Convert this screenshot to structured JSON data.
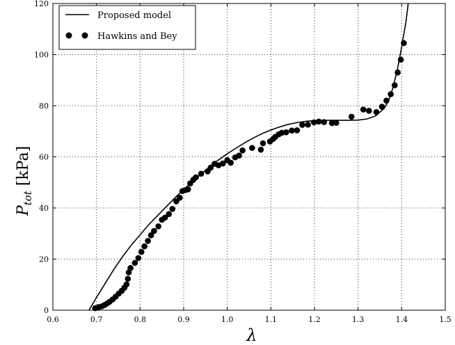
{
  "chart_data": {
    "type": "line",
    "xlabel": "λ",
    "ylabel_main": "P",
    "ylabel_sub": "tot",
    "ylabel_unit": " [kPa]",
    "xlim": [
      0.6,
      1.5
    ],
    "ylim": [
      0,
      120
    ],
    "xticks": [
      "0.6",
      "0.7",
      "0.8",
      "0.9",
      "1.0",
      "1.1",
      "1.2",
      "1.3",
      "1.4",
      "1.5"
    ],
    "yticks": [
      "0",
      "20",
      "40",
      "60",
      "80",
      "100",
      "120"
    ],
    "grid": true,
    "legend_position": "top-left",
    "series": [
      {
        "name": "Proposed model",
        "kind": "line",
        "color": "#000000",
        "points": [
          [
            0.683,
            0
          ],
          [
            0.7,
            5
          ],
          [
            0.72,
            10.5
          ],
          [
            0.74,
            16
          ],
          [
            0.76,
            21
          ],
          [
            0.78,
            25.5
          ],
          [
            0.8,
            29.5
          ],
          [
            0.82,
            33.5
          ],
          [
            0.84,
            37
          ],
          [
            0.86,
            40.5
          ],
          [
            0.88,
            44
          ],
          [
            0.9,
            47.2
          ],
          [
            0.92,
            50.3
          ],
          [
            0.94,
            53.3
          ],
          [
            0.96,
            56.2
          ],
          [
            0.98,
            58.8
          ],
          [
            1.0,
            61.2
          ],
          [
            1.02,
            63.4
          ],
          [
            1.04,
            65.5
          ],
          [
            1.06,
            67.4
          ],
          [
            1.08,
            69.1
          ],
          [
            1.1,
            70.5
          ],
          [
            1.12,
            71.7
          ],
          [
            1.14,
            72.7
          ],
          [
            1.16,
            73.4
          ],
          [
            1.18,
            73.9
          ],
          [
            1.2,
            74.2
          ],
          [
            1.22,
            74.3
          ],
          [
            1.24,
            74.3
          ],
          [
            1.26,
            74.3
          ],
          [
            1.28,
            74.3
          ],
          [
            1.3,
            74.4
          ],
          [
            1.32,
            74.8
          ],
          [
            1.34,
            76.0
          ],
          [
            1.36,
            79.0
          ],
          [
            1.37,
            82.0
          ],
          [
            1.38,
            87.0
          ],
          [
            1.39,
            94.0
          ],
          [
            1.4,
            103.0
          ],
          [
            1.41,
            113.0
          ],
          [
            1.415,
            120.0
          ]
        ]
      },
      {
        "name": "Hawkins and Bey",
        "kind": "scatter",
        "color": "#000000",
        "points": [
          [
            0.697,
            0.8
          ],
          [
            0.705,
            1.2
          ],
          [
            0.712,
            1.5
          ],
          [
            0.718,
            2.0
          ],
          [
            0.724,
            2.6
          ],
          [
            0.73,
            3.3
          ],
          [
            0.737,
            4.2
          ],
          [
            0.744,
            5.3
          ],
          [
            0.751,
            6.5
          ],
          [
            0.758,
            7.6
          ],
          [
            0.764,
            8.8
          ],
          [
            0.769,
            10.1
          ],
          [
            0.772,
            12.3
          ],
          [
            0.774,
            14.8
          ],
          [
            0.778,
            16.5
          ],
          [
            0.788,
            18.5
          ],
          [
            0.796,
            20.4
          ],
          [
            0.803,
            22.8
          ],
          [
            0.81,
            25.0
          ],
          [
            0.818,
            27.1
          ],
          [
            0.825,
            29.3
          ],
          [
            0.832,
            31.0
          ],
          [
            0.842,
            32.8
          ],
          [
            0.85,
            35.4
          ],
          [
            0.857,
            36.2
          ],
          [
            0.866,
            37.6
          ],
          [
            0.874,
            39.6
          ],
          [
            0.883,
            42.6
          ],
          [
            0.891,
            44.0
          ],
          [
            0.897,
            46.6
          ],
          [
            0.904,
            47.0
          ],
          [
            0.91,
            47.3
          ],
          [
            0.915,
            49.6
          ],
          [
            0.922,
            51.0
          ],
          [
            0.928,
            52.0
          ],
          [
            0.94,
            53.4
          ],
          [
            0.955,
            54.3
          ],
          [
            0.962,
            55.8
          ],
          [
            0.971,
            57.3
          ],
          [
            0.98,
            56.7
          ],
          [
            0.99,
            57.4
          ],
          [
            1.0,
            58.7
          ],
          [
            1.008,
            57.7
          ],
          [
            1.018,
            59.8
          ],
          [
            1.027,
            60.5
          ],
          [
            1.035,
            62.5
          ],
          [
            1.057,
            63.5
          ],
          [
            1.077,
            62.8
          ],
          [
            1.082,
            65.3
          ],
          [
            1.098,
            66.0
          ],
          [
            1.105,
            67.0
          ],
          [
            1.11,
            67.8
          ],
          [
            1.118,
            68.8
          ],
          [
            1.125,
            69.4
          ],
          [
            1.135,
            69.6
          ],
          [
            1.148,
            70.3
          ],
          [
            1.16,
            70.4
          ],
          [
            1.172,
            72.5
          ],
          [
            1.185,
            72.6
          ],
          [
            1.199,
            73.5
          ],
          [
            1.21,
            73.8
          ],
          [
            1.222,
            73.6
          ],
          [
            1.24,
            73.2
          ],
          [
            1.25,
            73.3
          ],
          [
            1.285,
            75.7
          ],
          [
            1.312,
            78.5
          ],
          [
            1.325,
            78.0
          ],
          [
            1.342,
            77.5
          ],
          [
            1.355,
            79.6
          ],
          [
            1.365,
            82.0
          ],
          [
            1.375,
            84.5
          ],
          [
            1.384,
            88.0
          ],
          [
            1.391,
            93.0
          ],
          [
            1.398,
            98.0
          ],
          [
            1.405,
            104.5
          ]
        ]
      }
    ]
  }
}
